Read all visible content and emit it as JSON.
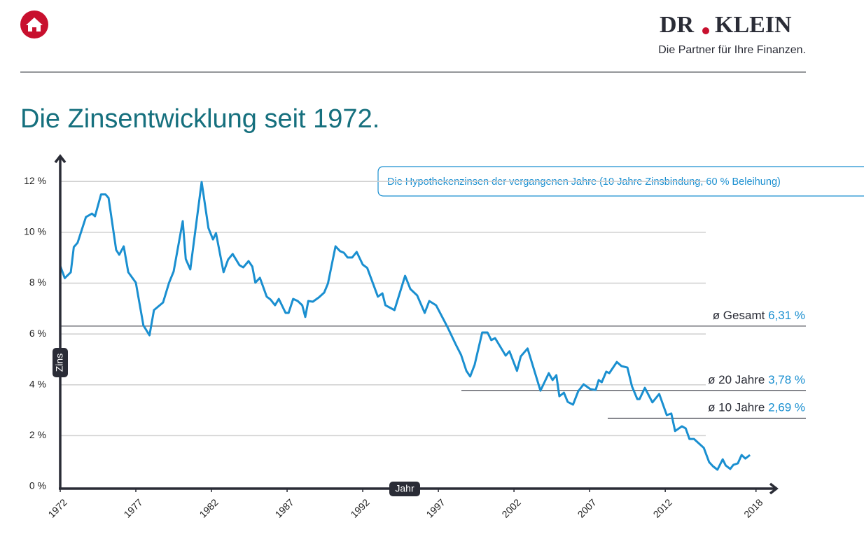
{
  "header": {
    "logo_left": "DR",
    "logo_right": "KLEIN",
    "tagline": "Die Partner für Ihre Finanzen."
  },
  "chart_data": {
    "type": "line",
    "title": "Die Zinsentwicklung seit 1972.",
    "y_label": "Zins",
    "x_label": "Jahr",
    "xlim": [
      1972,
      2019.4
    ],
    "xticks": [
      1972,
      1977,
      1982,
      1987,
      1992,
      1997,
      2002,
      2007,
      2012,
      2018
    ],
    "ylim": [
      0,
      13
    ],
    "yticks": [
      {
        "value": 0,
        "label": "0 %"
      },
      {
        "value": 2,
        "label": "2 %"
      },
      {
        "value": 4,
        "label": "4 %"
      },
      {
        "value": 6,
        "label": "6 %"
      },
      {
        "value": 8,
        "label": "8 %"
      },
      {
        "value": 10,
        "label": "10 %"
      },
      {
        "value": 12,
        "label": "12 %"
      }
    ],
    "grid": true,
    "series": [
      {
        "name": "Die Hypothekenzinsen der vergangenen Jahre (10 Jahre Zinsbindung, 60 % Beleihung)",
        "color": "#1a8fd0",
        "x": [
          1972.0,
          1972.3,
          1972.7,
          1972.9,
          1973.15,
          1973.7,
          1974.1,
          1974.3,
          1974.7,
          1975.0,
          1975.2,
          1975.7,
          1975.9,
          1976.2,
          1976.5,
          1977.0,
          1977.5,
          1977.9,
          1978.2,
          1978.8,
          1979.2,
          1979.5,
          1980.1,
          1980.3,
          1980.6,
          1981.35,
          1981.8,
          1982.1,
          1982.3,
          1982.8,
          1983.1,
          1983.4,
          1983.85,
          1984.1,
          1984.45,
          1984.7,
          1984.9,
          1985.2,
          1985.65,
          1985.9,
          1986.2,
          1986.45,
          1986.9,
          1987.1,
          1987.4,
          1987.7,
          1988.0,
          1988.2,
          1988.4,
          1988.7,
          1989.1,
          1989.45,
          1989.7,
          1990.2,
          1990.5,
          1990.75,
          1991.0,
          1991.3,
          1991.6,
          1992.0,
          1992.3,
          1993.0,
          1993.3,
          1993.5,
          1994.1,
          1994.8,
          1995.15,
          1995.6,
          1996.1,
          1996.4,
          1996.85,
          1997.6,
          1998.15,
          1998.5,
          1998.85,
          1999.1,
          1999.4,
          1999.9,
          2000.25,
          2000.5,
          2000.75,
          2001.45,
          2001.7,
          2002.2,
          2002.45,
          2002.9,
          2003.75,
          2004.3,
          2004.55,
          2004.8,
          2005.0,
          2005.3,
          2005.55,
          2005.9,
          2006.25,
          2006.6,
          2007.05,
          2007.4,
          2007.6,
          2007.8,
          2008.1,
          2008.3,
          2008.8,
          2009.1,
          2009.5,
          2009.8,
          2010.15,
          2010.3,
          2010.65,
          2011.15,
          2011.6,
          2012.1,
          2012.4,
          2012.65,
          2013.1,
          2013.35,
          2013.6,
          2013.9,
          2014.55,
          2014.9,
          2015.15,
          2015.45,
          2015.8,
          2016.0,
          2016.3,
          2016.5,
          2016.8,
          2017.05,
          2017.3,
          2017.6
        ],
        "values": [
          8.68,
          8.2,
          8.43,
          9.42,
          9.59,
          10.6,
          10.74,
          10.63,
          11.49,
          11.49,
          11.35,
          9.31,
          9.12,
          9.45,
          8.43,
          8.02,
          6.34,
          5.95,
          6.94,
          7.24,
          8.02,
          8.46,
          10.44,
          8.95,
          8.54,
          11.98,
          10.17,
          9.72,
          9.97,
          8.43,
          8.93,
          9.15,
          8.71,
          8.62,
          8.87,
          8.65,
          8.02,
          8.21,
          7.47,
          7.36,
          7.13,
          7.38,
          6.83,
          6.83,
          7.38,
          7.3,
          7.13,
          6.67,
          7.3,
          7.27,
          7.44,
          7.63,
          7.99,
          9.45,
          9.26,
          9.2,
          9.01,
          9.01,
          9.23,
          8.73,
          8.6,
          7.47,
          7.6,
          7.13,
          6.94,
          8.29,
          7.77,
          7.52,
          6.83,
          7.3,
          7.13,
          6.28,
          5.59,
          5.18,
          4.55,
          4.33,
          4.79,
          6.06,
          6.06,
          5.76,
          5.84,
          5.15,
          5.32,
          4.55,
          5.12,
          5.43,
          3.77,
          4.46,
          4.19,
          4.38,
          3.55,
          3.69,
          3.33,
          3.22,
          3.75,
          4.02,
          3.83,
          3.8,
          4.19,
          4.1,
          4.52,
          4.46,
          4.9,
          4.74,
          4.68,
          3.94,
          3.44,
          3.44,
          3.88,
          3.31,
          3.64,
          2.81,
          2.87,
          2.18,
          2.37,
          2.29,
          1.87,
          1.87,
          1.52,
          0.96,
          0.8,
          0.66,
          1.07,
          0.83,
          0.69,
          0.85,
          0.91,
          1.24,
          1.1,
          1.24
        ]
      }
    ],
    "annotations": [
      {
        "label": "ø Gesamt",
        "value": 6.31,
        "value_label": "6,31 %"
      },
      {
        "label": "ø 20 Jahre",
        "value": 3.78,
        "value_label": "3,78 %"
      },
      {
        "label": "ø 10 Jahre",
        "value": 2.69,
        "value_label": "2,69 %"
      }
    ]
  }
}
